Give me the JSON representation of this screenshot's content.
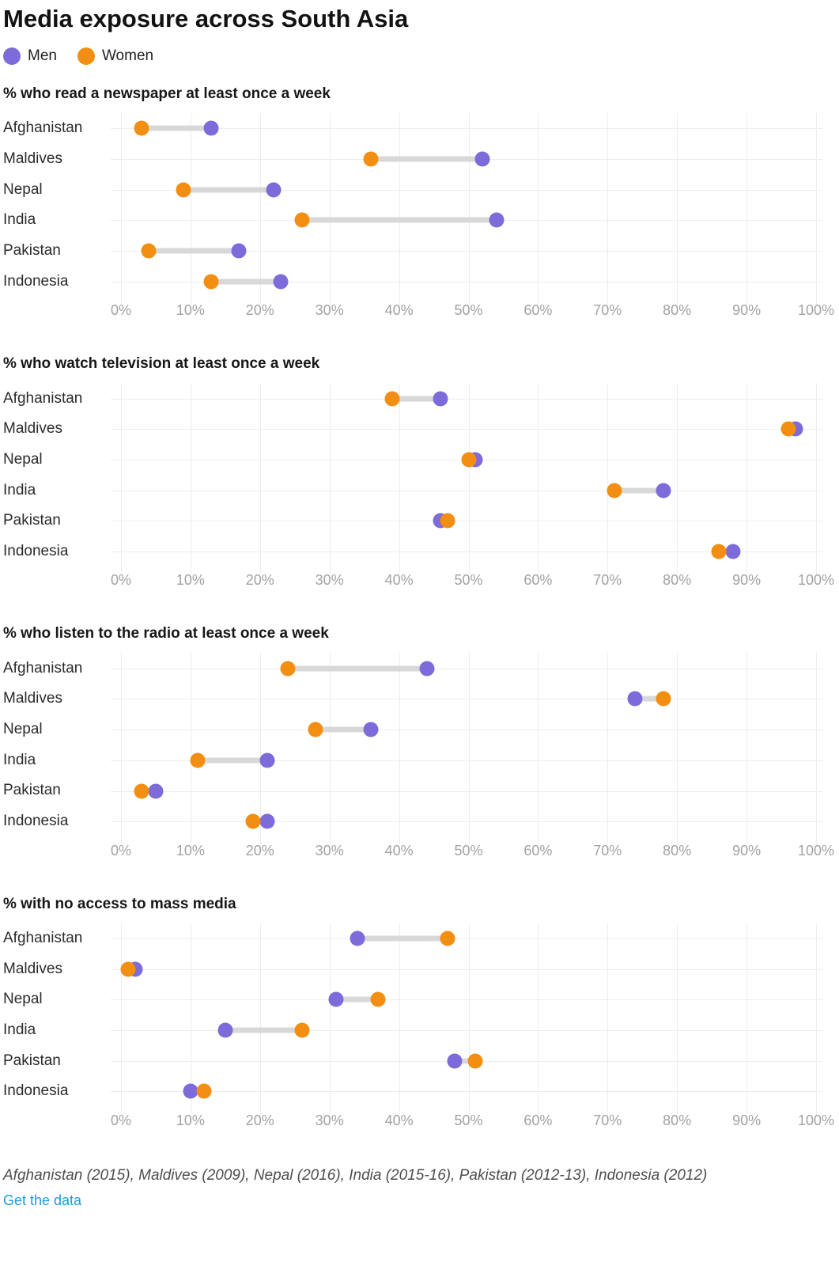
{
  "title": "Media exposure across South Asia",
  "legend": [
    {
      "id": "men",
      "label": "Men",
      "color": "#7c6bd8"
    },
    {
      "id": "women",
      "label": "Women",
      "color": "#f28e11"
    }
  ],
  "colors": {
    "men": "#7c6bd8",
    "women": "#f28e11",
    "connector": "#d8d8d8",
    "grid": "#ededed",
    "axis_text": "#a2a2a2",
    "link": "#1b9cd9"
  },
  "axis": {
    "min": 0,
    "max": 100,
    "tick_step": 10,
    "ticks": [
      "0%",
      "10%",
      "20%",
      "30%",
      "40%",
      "50%",
      "60%",
      "70%",
      "80%",
      "90%",
      "100%"
    ]
  },
  "chart_data": [
    {
      "type": "dumbbell",
      "title": "% who read a newspaper at least once a week",
      "categories": [
        "Afghanistan",
        "Maldives",
        "Nepal",
        "India",
        "Pakistan",
        "Indonesia"
      ],
      "series": [
        {
          "name": "Men",
          "values": [
            13,
            52,
            22,
            54,
            17,
            23
          ]
        },
        {
          "name": "Women",
          "values": [
            3,
            36,
            9,
            26,
            4,
            13
          ]
        }
      ],
      "xlim": [
        0,
        100
      ],
      "grid": true,
      "legend_position": "top"
    },
    {
      "type": "dumbbell",
      "title": "% who watch television at least once a week",
      "categories": [
        "Afghanistan",
        "Maldives",
        "Nepal",
        "India",
        "Pakistan",
        "Indonesia"
      ],
      "series": [
        {
          "name": "Men",
          "values": [
            46,
            97,
            51,
            78,
            46,
            88
          ]
        },
        {
          "name": "Women",
          "values": [
            39,
            96,
            50,
            71,
            47,
            86
          ]
        }
      ],
      "xlim": [
        0,
        100
      ],
      "grid": true,
      "legend_position": "top"
    },
    {
      "type": "dumbbell",
      "title": "% who listen to the radio at least once a week",
      "categories": [
        "Afghanistan",
        "Maldives",
        "Nepal",
        "India",
        "Pakistan",
        "Indonesia"
      ],
      "series": [
        {
          "name": "Men",
          "values": [
            44,
            74,
            36,
            21,
            5,
            21
          ]
        },
        {
          "name": "Women",
          "values": [
            24,
            78,
            28,
            11,
            3,
            19
          ]
        }
      ],
      "xlim": [
        0,
        100
      ],
      "grid": true,
      "legend_position": "top"
    },
    {
      "type": "dumbbell",
      "title": "% with no access to mass media",
      "categories": [
        "Afghanistan",
        "Maldives",
        "Nepal",
        "India",
        "Pakistan",
        "Indonesia"
      ],
      "series": [
        {
          "name": "Men",
          "values": [
            34,
            2,
            31,
            15,
            48,
            10
          ]
        },
        {
          "name": "Women",
          "values": [
            47,
            1,
            37,
            26,
            51,
            12
          ]
        }
      ],
      "xlim": [
        0,
        100
      ],
      "grid": true,
      "legend_position": "top"
    }
  ],
  "footer": {
    "source_note": "Afghanistan (2015), Maldives (2009), Nepal (2016), India (2015-16), Pakistan (2012-13), Indonesia (2012)",
    "link_label": "Get the data"
  }
}
